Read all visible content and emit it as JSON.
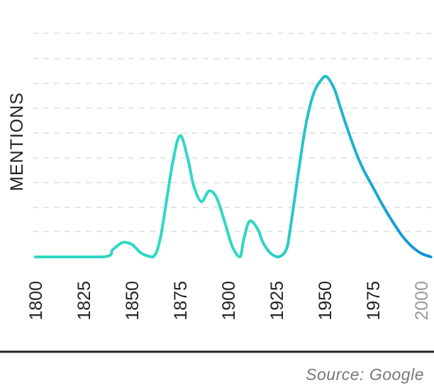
{
  "chart_data": {
    "type": "line",
    "title": "",
    "xlabel": "",
    "ylabel": "MENTIONS",
    "source": "Source: Google",
    "xlim": [
      1800,
      2005
    ],
    "ylim": [
      0,
      100
    ],
    "grid": true,
    "x_ticks": [
      {
        "value": 1800,
        "label": "1800",
        "muted": false
      },
      {
        "value": 1825,
        "label": "1825",
        "muted": false
      },
      {
        "value": 1850,
        "label": "1850",
        "muted": false
      },
      {
        "value": 1875,
        "label": "1875",
        "muted": false
      },
      {
        "value": 1900,
        "label": "1900",
        "muted": false
      },
      {
        "value": 1925,
        "label": "1925",
        "muted": false
      },
      {
        "value": 1950,
        "label": "1950",
        "muted": false
      },
      {
        "value": 1975,
        "label": "1975",
        "muted": false
      },
      {
        "value": 2000,
        "label": "2000",
        "muted": true
      }
    ],
    "series": [
      {
        "x": [
          1800,
          1835,
          1840,
          1845,
          1850,
          1855,
          1861,
          1865,
          1871,
          1875,
          1879,
          1882,
          1886,
          1890,
          1894,
          1898,
          1902,
          1906,
          1908,
          1911,
          1915,
          1918,
          1922,
          1926,
          1930,
          1932,
          1936,
          1940,
          1944,
          1948,
          1951,
          1955,
          1958,
          1962,
          1966,
          1970,
          1975,
          1980,
          1985,
          1990,
          1995,
          2000,
          2005
        ],
        "y": [
          0,
          0,
          4,
          8,
          7,
          2,
          0,
          12,
          52,
          68,
          55,
          40,
          31,
          37,
          33,
          20,
          6,
          0,
          10,
          20,
          16,
          8,
          2,
          0,
          4,
          15,
          45,
          73,
          91,
          99,
          101,
          94,
          84,
          71,
          59,
          49,
          39,
          29,
          20,
          12,
          6,
          2,
          0
        ],
        "color_start": "#2fd8c4",
        "color_end": "#1192d6"
      }
    ]
  }
}
